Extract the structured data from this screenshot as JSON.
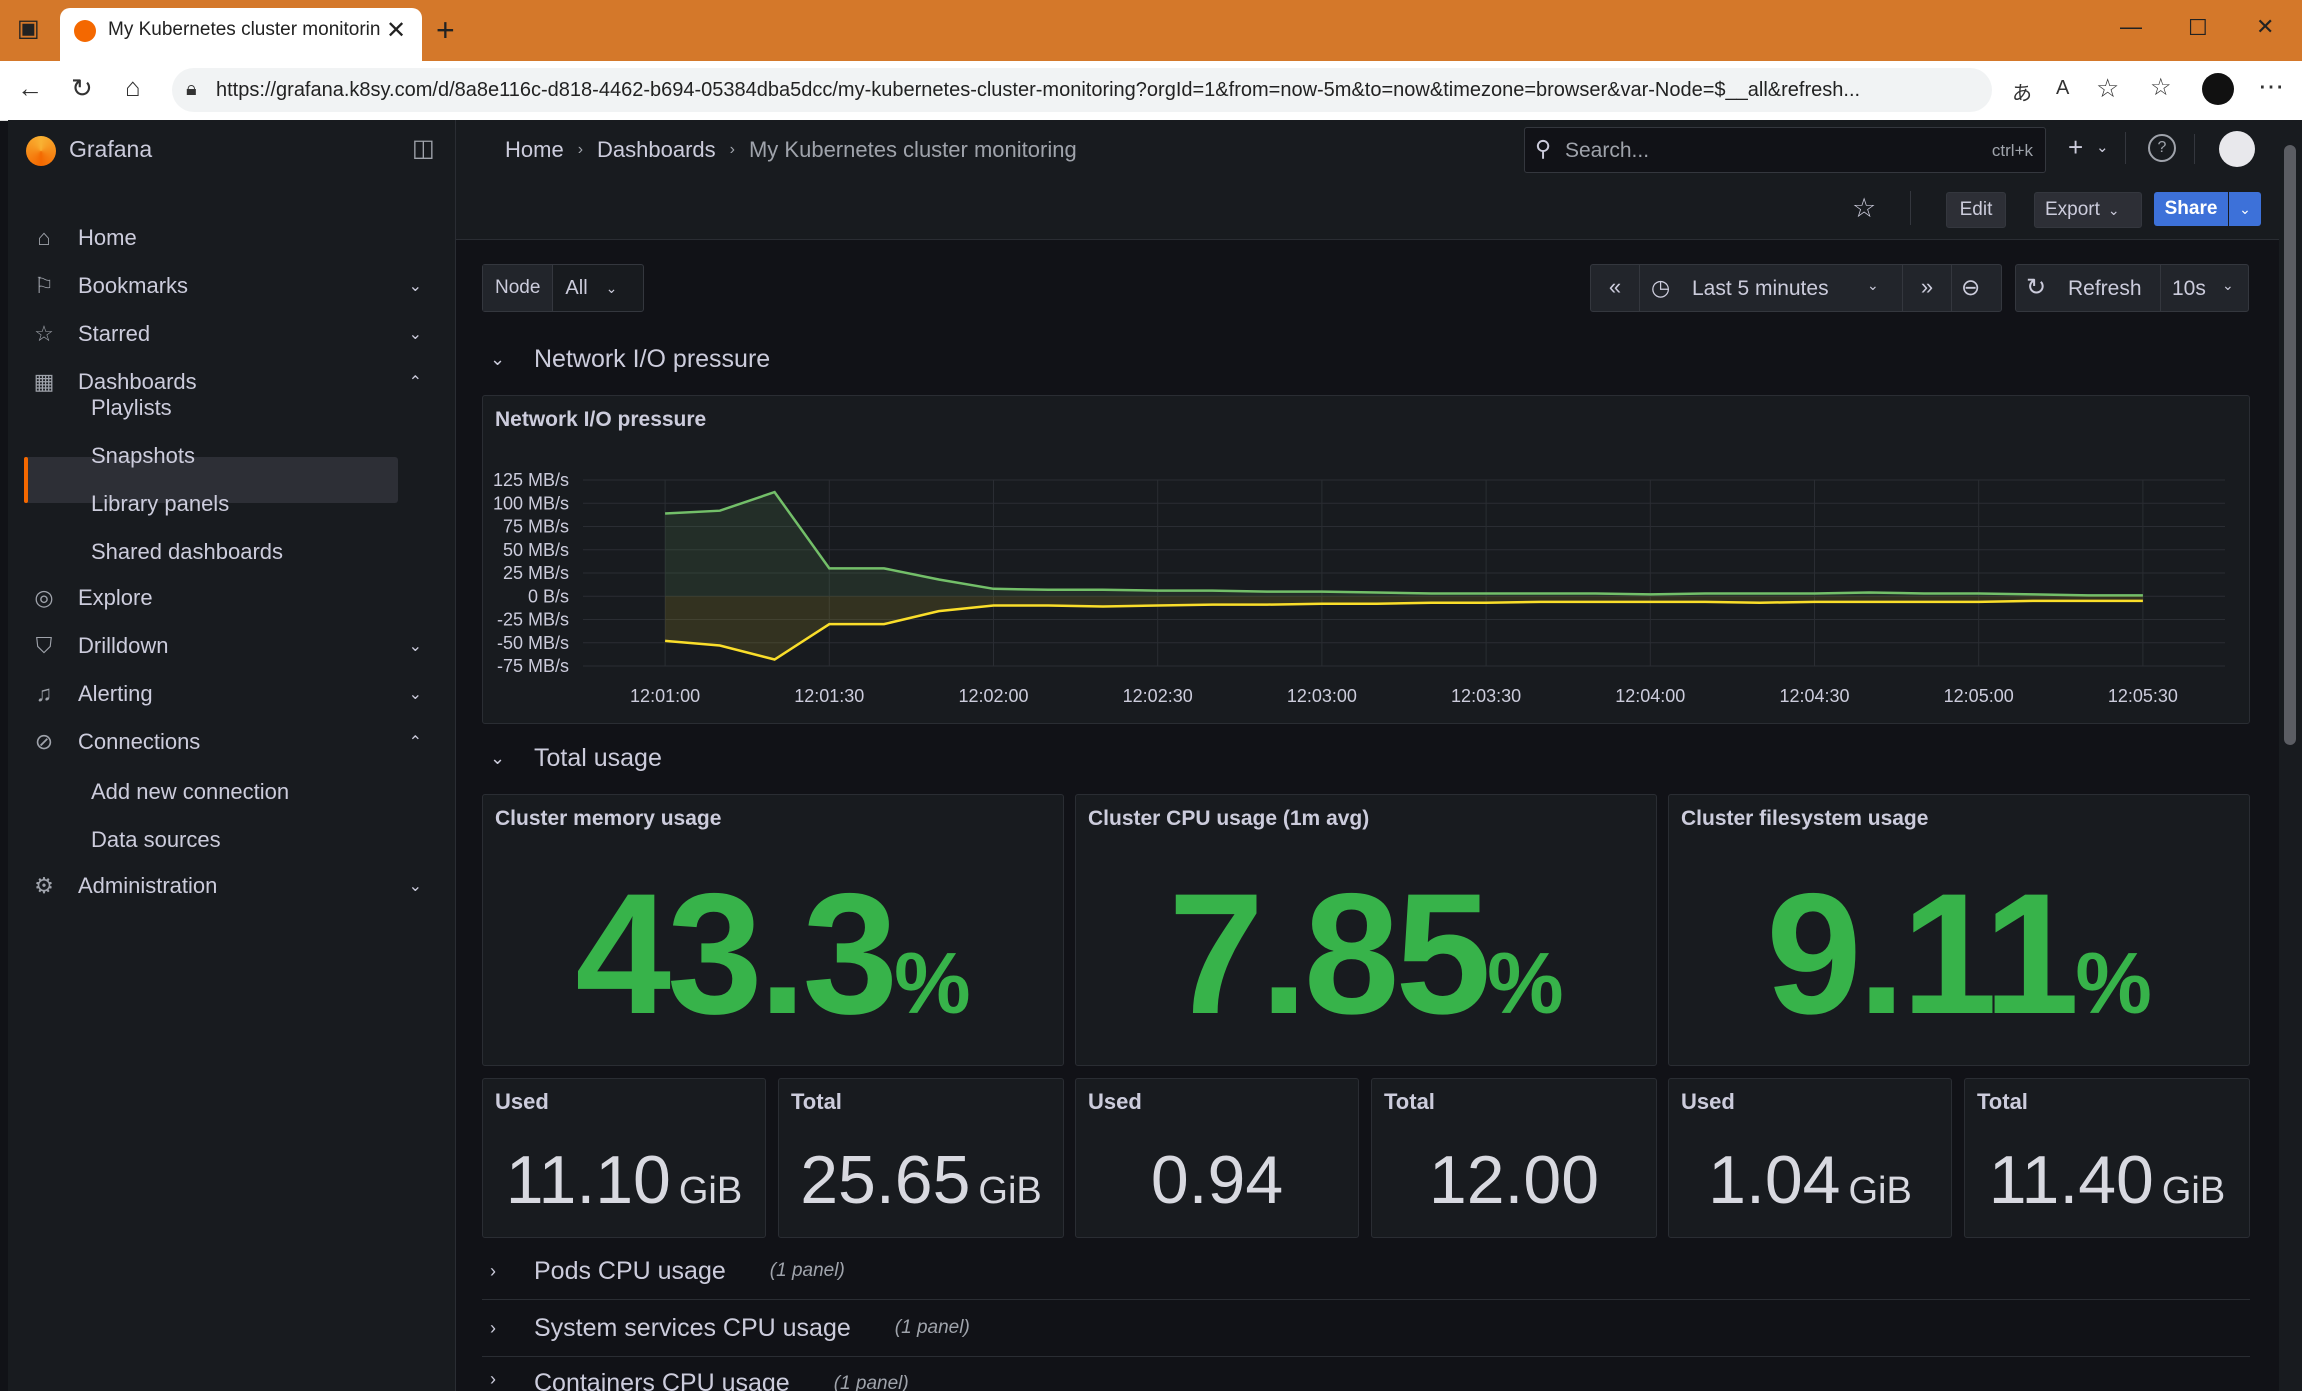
{
  "browser": {
    "tab_title": "My Kubernetes cluster monitoring",
    "url": "https://grafana.k8sy.com/d/8a8e116c-d818-4462-b694-05384dba5dcc/my-kubernetes-cluster-monitoring?orgId=1&from=now-5m&to=now&timezone=browser&var-Node=$__all&refresh..."
  },
  "app": {
    "name": "Grafana"
  },
  "sidebar": {
    "items": [
      {
        "label": "Home",
        "icon": "home-icon"
      },
      {
        "label": "Bookmarks",
        "icon": "bookmark-icon"
      },
      {
        "label": "Starred",
        "icon": "star-icon"
      },
      {
        "label": "Dashboards",
        "icon": "grid-icon"
      },
      {
        "label": "Playlists"
      },
      {
        "label": "Snapshots"
      },
      {
        "label": "Library panels"
      },
      {
        "label": "Shared dashboards"
      },
      {
        "label": "Explore",
        "icon": "compass-icon"
      },
      {
        "label": "Drilldown",
        "icon": "drilldown-icon"
      },
      {
        "label": "Alerting",
        "icon": "bell-icon"
      },
      {
        "label": "Connections",
        "icon": "connections-icon"
      },
      {
        "label": "Add new connection"
      },
      {
        "label": "Data sources"
      },
      {
        "label": "Administration",
        "icon": "gear-icon"
      }
    ]
  },
  "breadcrumb": [
    "Home",
    "Dashboards",
    "My Kubernetes cluster monitoring"
  ],
  "search": {
    "placeholder": "Search...",
    "shortcut": "ctrl+k"
  },
  "toolbar": {
    "edit": "Edit",
    "export": "Export",
    "share": "Share"
  },
  "variables": {
    "node_label": "Node",
    "node_value": "All"
  },
  "time": {
    "range": "Last 5 minutes",
    "refresh": "Refresh",
    "interval": "10s"
  },
  "rows": {
    "network": "Network I/O pressure",
    "total": "Total usage",
    "pods": "Pods CPU usage",
    "pods_count": "(1 panel)",
    "system": "System services CPU usage",
    "system_count": "(1 panel)",
    "containers": "Containers CPU usage",
    "containers_count": "(1 panel)"
  },
  "panels": {
    "network_title": "Network I/O pressure",
    "memory": {
      "title": "Cluster memory usage",
      "value": "43.3",
      "unit": "%"
    },
    "cpu": {
      "title": "Cluster CPU usage (1m avg)",
      "value": "7.85",
      "unit": "%"
    },
    "fs": {
      "title": "Cluster filesystem usage",
      "value": "9.11",
      "unit": "%"
    },
    "mem_used": {
      "label": "Used",
      "value": "11.10",
      "unit": "GiB"
    },
    "mem_total": {
      "label": "Total",
      "value": "25.65",
      "unit": "GiB"
    },
    "cpu_used": {
      "label": "Used",
      "value": "0.94"
    },
    "cpu_total": {
      "label": "Total",
      "value": "12.00"
    },
    "fs_used": {
      "label": "Used",
      "value": "1.04",
      "unit": "GiB"
    },
    "fs_total": {
      "label": "Total",
      "value": "11.40",
      "unit": "GiB"
    }
  },
  "chart_data": {
    "type": "area",
    "title": "Network I/O pressure",
    "y_ticks": [
      "125 MB/s",
      "100 MB/s",
      "75 MB/s",
      "50 MB/s",
      "25 MB/s",
      "0 B/s",
      "-25 MB/s",
      "-50 MB/s",
      "-75 MB/s"
    ],
    "x_ticks": [
      "12:01:00",
      "12:01:30",
      "12:02:00",
      "12:02:30",
      "12:03:00",
      "12:03:30",
      "12:04:00",
      "12:04:30",
      "12:05:00",
      "12:05:30"
    ],
    "ylim": [
      -75,
      125
    ],
    "x_seconds": [
      15,
      25,
      35,
      45,
      55,
      65,
      75,
      85,
      95,
      105,
      115,
      125,
      135,
      145,
      155,
      165,
      175,
      185,
      195,
      205,
      215,
      225,
      235,
      245,
      255,
      265,
      275,
      285
    ],
    "series": [
      {
        "color": "#73bf69",
        "values": [
          89,
          92,
          112,
          30,
          30,
          18,
          8,
          7,
          7,
          6,
          6,
          5,
          5,
          4,
          3,
          3,
          3,
          3,
          2,
          3,
          3,
          3,
          4,
          3,
          3,
          2,
          1,
          1
        ]
      },
      {
        "color": "#fade2a",
        "values": [
          -48,
          -53,
          -68,
          -30,
          -30,
          -16,
          -10,
          -10,
          -11,
          -10,
          -9,
          -9,
          -8,
          -8,
          -7,
          -7,
          -6,
          -6,
          -6,
          -6,
          -7,
          -6,
          -6,
          -6,
          -6,
          -5,
          -5,
          -5
        ]
      }
    ],
    "grid": true
  }
}
